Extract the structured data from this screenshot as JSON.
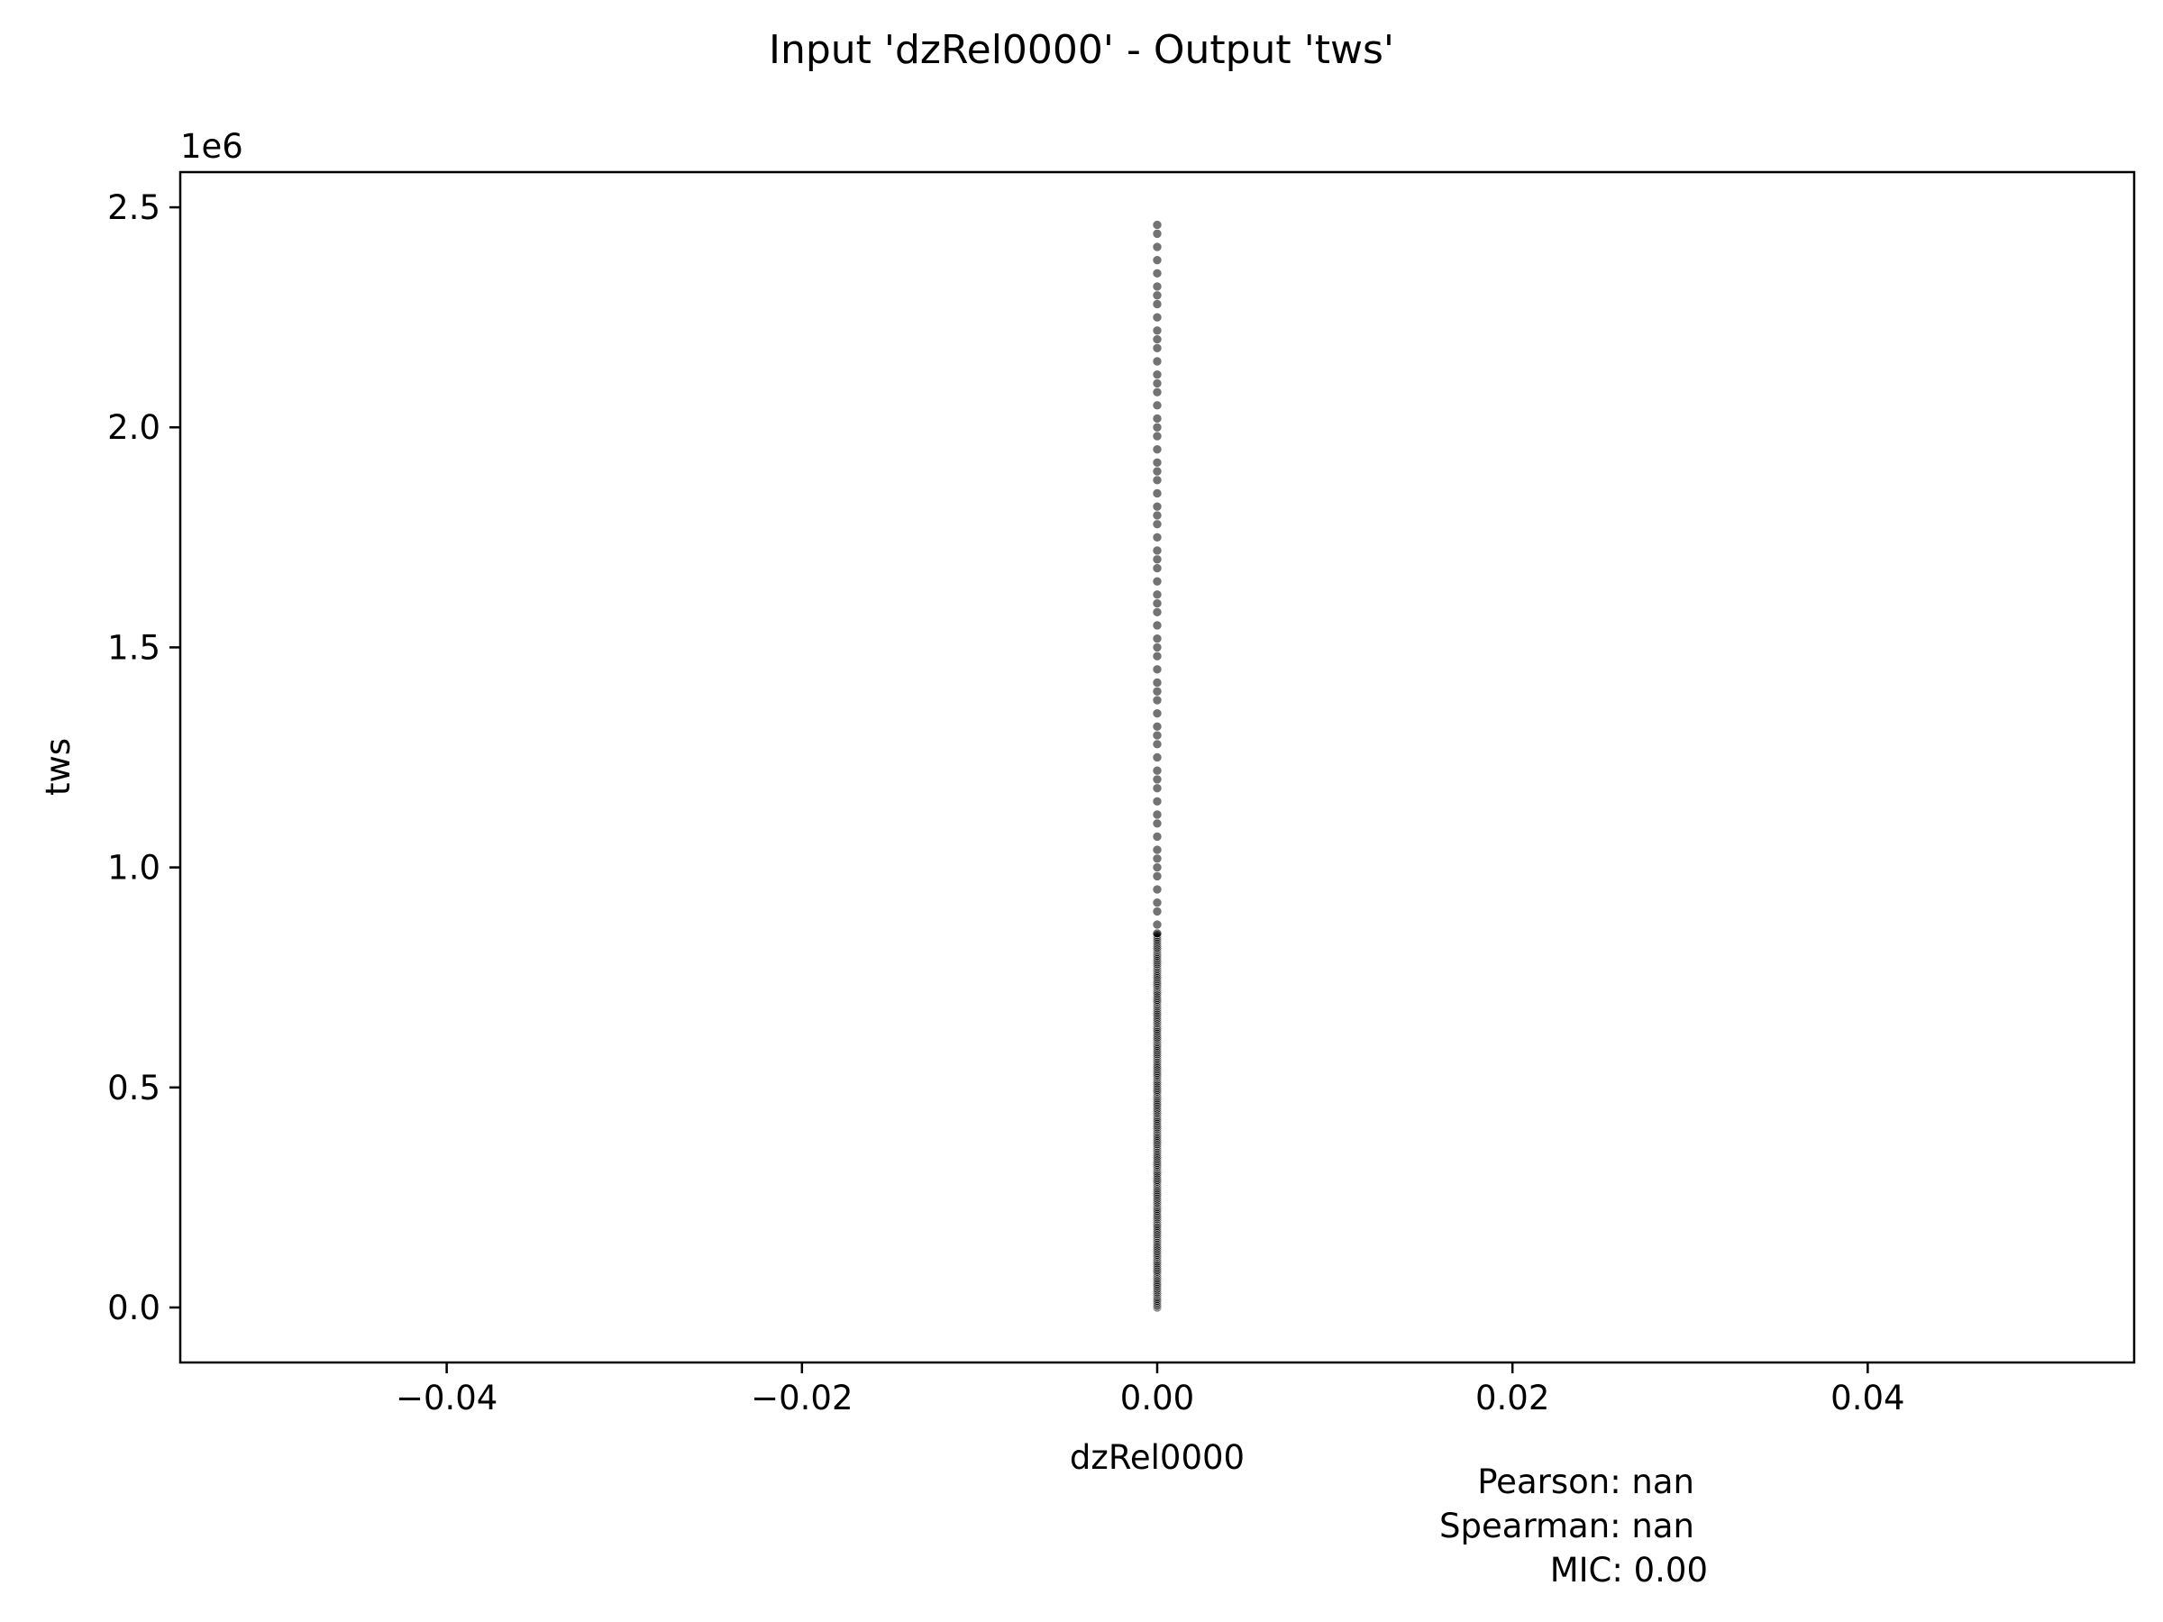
{
  "chart_data": {
    "type": "scatter",
    "title": "Input 'dzRel0000' - Output 'tws'",
    "xlabel": "dzRel0000",
    "ylabel": "tws",
    "xlim": [
      -0.055,
      0.055
    ],
    "ylim": [
      -0.125,
      2.58
    ],
    "y_offset_label": "1e6",
    "y_multiplier": 1000000,
    "xticks": [
      -0.04,
      -0.02,
      0.0,
      0.02,
      0.04
    ],
    "xtick_labels": [
      "−0.04",
      "−0.02",
      "0.00",
      "0.02",
      "0.04"
    ],
    "yticks": [
      0.0,
      0.5,
      1.0,
      1.5,
      2.0,
      2.5
    ],
    "ytick_labels": [
      "0.0",
      "0.5",
      "1.0",
      "1.5",
      "2.0",
      "2.5"
    ],
    "grid": false,
    "marker_color": "#000000",
    "series": [
      {
        "x_constant": 0.0,
        "y_dense_range": [
          0.0,
          0.85
        ],
        "y_sparse_points": [
          0.87,
          0.9,
          0.92,
          0.95,
          0.98,
          1.0,
          1.02,
          1.04,
          1.07,
          1.1,
          1.12,
          1.15,
          1.18,
          1.2,
          1.22,
          1.25,
          1.28,
          1.3,
          1.32,
          1.35,
          1.38,
          1.4,
          1.42,
          1.45,
          1.48,
          1.5,
          1.52,
          1.55,
          1.58,
          1.6,
          1.62,
          1.65,
          1.68,
          1.7,
          1.72,
          1.75,
          1.78,
          1.8,
          1.82,
          1.85,
          1.88,
          1.9,
          1.92,
          1.95,
          1.98,
          2.0,
          2.02,
          2.05,
          2.08,
          2.1,
          2.12,
          2.15,
          2.18,
          2.2,
          2.22,
          2.25,
          2.28,
          2.3,
          2.32,
          2.35,
          2.38,
          2.41,
          2.44,
          2.46
        ]
      }
    ],
    "annotations": {
      "pearson": "Pearson: nan",
      "spearman": "Spearman: nan",
      "mic": "MIC: 0.00"
    }
  }
}
